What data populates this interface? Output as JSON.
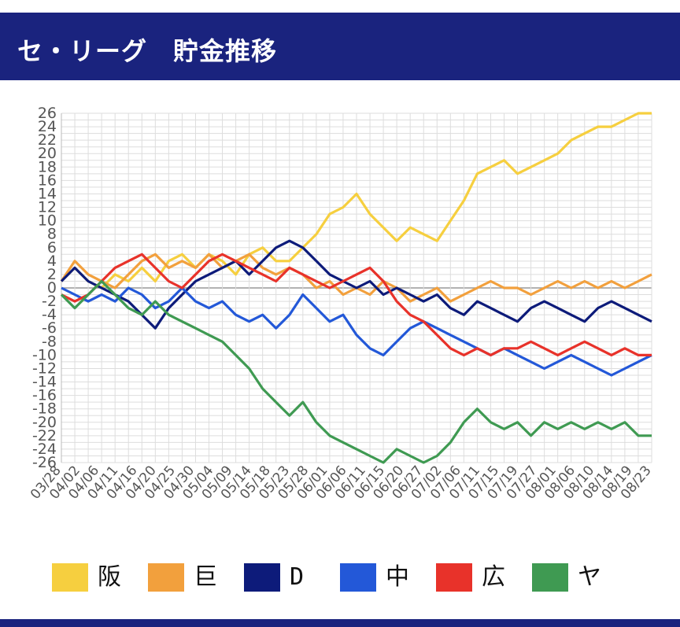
{
  "header": {
    "title": "セ・リーグ　貯金推移"
  },
  "colors": {
    "header_bg": "#1a237e",
    "grid": "#dddddd",
    "zero_line": "#999999",
    "axis_text": "#555555"
  },
  "chart_data": {
    "type": "line",
    "title": "",
    "xlabel": "",
    "ylabel": "",
    "ylim": [
      -26,
      26
    ],
    "ytick_step": 2,
    "grid": true,
    "legend_position": "bottom",
    "x_ticks": [
      "03/28",
      "04/02",
      "04/06",
      "04/11",
      "04/16",
      "04/20",
      "04/25",
      "04/30",
      "05/04",
      "05/09",
      "05/14",
      "05/18",
      "05/23",
      "05/28",
      "06/01",
      "06/06",
      "06/11",
      "06/15",
      "06/20",
      "06/27",
      "07/02",
      "07/06",
      "07/11",
      "07/15",
      "07/19",
      "07/27",
      "08/01",
      "08/06",
      "08/10",
      "08/14",
      "08/19",
      "08/23"
    ],
    "series": [
      {
        "name": "阪",
        "color": "#f6cf3f",
        "points": [
          [
            0,
            1
          ],
          [
            1,
            3
          ],
          [
            2,
            1
          ],
          [
            3,
            0
          ],
          [
            4,
            2
          ],
          [
            5,
            1
          ],
          [
            6,
            3
          ],
          [
            7,
            1
          ],
          [
            8,
            4
          ],
          [
            9,
            5
          ],
          [
            10,
            3
          ],
          [
            11,
            5
          ],
          [
            12,
            4
          ],
          [
            13,
            2
          ],
          [
            14,
            5
          ],
          [
            15,
            6
          ],
          [
            16,
            4
          ],
          [
            17,
            4
          ],
          [
            18,
            6
          ],
          [
            19,
            8
          ],
          [
            20,
            11
          ],
          [
            21,
            12
          ],
          [
            22,
            14
          ],
          [
            23,
            11
          ],
          [
            24,
            9
          ],
          [
            25,
            7
          ],
          [
            26,
            9
          ],
          [
            27,
            8
          ],
          [
            28,
            7
          ],
          [
            29,
            10
          ],
          [
            30,
            13
          ],
          [
            31,
            17
          ],
          [
            32,
            18
          ],
          [
            33,
            19
          ],
          [
            34,
            17
          ],
          [
            35,
            18
          ],
          [
            36,
            19
          ],
          [
            37,
            20
          ],
          [
            38,
            22
          ],
          [
            39,
            23
          ],
          [
            40,
            24
          ],
          [
            41,
            24
          ],
          [
            42,
            25
          ],
          [
            43,
            26
          ],
          [
            44,
            26
          ]
        ]
      },
      {
        "name": "巨",
        "color": "#f2a03d",
        "points": [
          [
            0,
            1
          ],
          [
            1,
            4
          ],
          [
            2,
            2
          ],
          [
            3,
            1
          ],
          [
            4,
            0
          ],
          [
            5,
            2
          ],
          [
            6,
            4
          ],
          [
            7,
            5
          ],
          [
            8,
            3
          ],
          [
            9,
            4
          ],
          [
            10,
            3
          ],
          [
            11,
            5
          ],
          [
            12,
            3
          ],
          [
            13,
            4
          ],
          [
            14,
            5
          ],
          [
            15,
            3
          ],
          [
            16,
            2
          ],
          [
            17,
            3
          ],
          [
            18,
            2
          ],
          [
            19,
            0
          ],
          [
            20,
            1
          ],
          [
            21,
            -1
          ],
          [
            22,
            0
          ],
          [
            23,
            -1
          ],
          [
            24,
            1
          ],
          [
            25,
            0
          ],
          [
            26,
            -2
          ],
          [
            27,
            -1
          ],
          [
            28,
            0
          ],
          [
            29,
            -2
          ],
          [
            30,
            -1
          ],
          [
            31,
            0
          ],
          [
            32,
            1
          ],
          [
            33,
            0
          ],
          [
            34,
            0
          ],
          [
            35,
            -1
          ],
          [
            36,
            0
          ],
          [
            37,
            1
          ],
          [
            38,
            0
          ],
          [
            39,
            1
          ],
          [
            40,
            0
          ],
          [
            41,
            1
          ],
          [
            42,
            0
          ],
          [
            43,
            1
          ],
          [
            44,
            2
          ]
        ]
      },
      {
        "name": "D",
        "color": "#0d1b7a",
        "points": [
          [
            0,
            1
          ],
          [
            1,
            3
          ],
          [
            2,
            1
          ],
          [
            3,
            0
          ],
          [
            4,
            -1
          ],
          [
            5,
            -2
          ],
          [
            6,
            -4
          ],
          [
            7,
            -6
          ],
          [
            8,
            -3
          ],
          [
            9,
            -1
          ],
          [
            10,
            1
          ],
          [
            11,
            2
          ],
          [
            12,
            3
          ],
          [
            13,
            4
          ],
          [
            14,
            2
          ],
          [
            15,
            4
          ],
          [
            16,
            6
          ],
          [
            17,
            7
          ],
          [
            18,
            6
          ],
          [
            19,
            4
          ],
          [
            20,
            2
          ],
          [
            21,
            1
          ],
          [
            22,
            0
          ],
          [
            23,
            1
          ],
          [
            24,
            -1
          ],
          [
            25,
            0
          ],
          [
            26,
            -1
          ],
          [
            27,
            -2
          ],
          [
            28,
            -1
          ],
          [
            29,
            -3
          ],
          [
            30,
            -4
          ],
          [
            31,
            -2
          ],
          [
            32,
            -3
          ],
          [
            33,
            -4
          ],
          [
            34,
            -5
          ],
          [
            35,
            -3
          ],
          [
            36,
            -2
          ],
          [
            37,
            -3
          ],
          [
            38,
            -4
          ],
          [
            39,
            -5
          ],
          [
            40,
            -3
          ],
          [
            41,
            -2
          ],
          [
            42,
            -3
          ],
          [
            43,
            -4
          ],
          [
            44,
            -5
          ]
        ]
      },
      {
        "name": "中",
        "color": "#2358d8",
        "points": [
          [
            0,
            0
          ],
          [
            1,
            -1
          ],
          [
            2,
            -2
          ],
          [
            3,
            -1
          ],
          [
            4,
            -2
          ],
          [
            5,
            0
          ],
          [
            6,
            -1
          ],
          [
            7,
            -3
          ],
          [
            8,
            -2
          ],
          [
            9,
            0
          ],
          [
            10,
            -2
          ],
          [
            11,
            -3
          ],
          [
            12,
            -2
          ],
          [
            13,
            -4
          ],
          [
            14,
            -5
          ],
          [
            15,
            -4
          ],
          [
            16,
            -6
          ],
          [
            17,
            -4
          ],
          [
            18,
            -1
          ],
          [
            19,
            -3
          ],
          [
            20,
            -5
          ],
          [
            21,
            -4
          ],
          [
            22,
            -7
          ],
          [
            23,
            -9
          ],
          [
            24,
            -10
          ],
          [
            25,
            -8
          ],
          [
            26,
            -6
          ],
          [
            27,
            -5
          ],
          [
            28,
            -6
          ],
          [
            29,
            -7
          ],
          [
            30,
            -8
          ],
          [
            31,
            -9
          ],
          [
            32,
            -10
          ],
          [
            33,
            -9
          ],
          [
            34,
            -10
          ],
          [
            35,
            -11
          ],
          [
            36,
            -12
          ],
          [
            37,
            -11
          ],
          [
            38,
            -10
          ],
          [
            39,
            -11
          ],
          [
            40,
            -12
          ],
          [
            41,
            -13
          ],
          [
            42,
            -12
          ],
          [
            43,
            -11
          ],
          [
            44,
            -10
          ]
        ]
      },
      {
        "name": "広",
        "color": "#e8322a",
        "points": [
          [
            0,
            -1
          ],
          [
            1,
            -2
          ],
          [
            2,
            -1
          ],
          [
            3,
            1
          ],
          [
            4,
            3
          ],
          [
            5,
            4
          ],
          [
            6,
            5
          ],
          [
            7,
            3
          ],
          [
            8,
            1
          ],
          [
            9,
            0
          ],
          [
            10,
            2
          ],
          [
            11,
            4
          ],
          [
            12,
            5
          ],
          [
            13,
            4
          ],
          [
            14,
            3
          ],
          [
            15,
            2
          ],
          [
            16,
            1
          ],
          [
            17,
            3
          ],
          [
            18,
            2
          ],
          [
            19,
            1
          ],
          [
            20,
            0
          ],
          [
            21,
            1
          ],
          [
            22,
            2
          ],
          [
            23,
            3
          ],
          [
            24,
            1
          ],
          [
            25,
            -2
          ],
          [
            26,
            -4
          ],
          [
            27,
            -5
          ],
          [
            28,
            -7
          ],
          [
            29,
            -9
          ],
          [
            30,
            -10
          ],
          [
            31,
            -9
          ],
          [
            32,
            -10
          ],
          [
            33,
            -9
          ],
          [
            34,
            -9
          ],
          [
            35,
            -8
          ],
          [
            36,
            -9
          ],
          [
            37,
            -10
          ],
          [
            38,
            -9
          ],
          [
            39,
            -8
          ],
          [
            40,
            -9
          ],
          [
            41,
            -10
          ],
          [
            42,
            -9
          ],
          [
            43,
            -10
          ],
          [
            44,
            -10
          ]
        ]
      },
      {
        "name": "ヤ",
        "color": "#3f9a52",
        "points": [
          [
            0,
            -1
          ],
          [
            1,
            -3
          ],
          [
            2,
            -1
          ],
          [
            3,
            1
          ],
          [
            4,
            -1
          ],
          [
            5,
            -3
          ],
          [
            6,
            -4
          ],
          [
            7,
            -2
          ],
          [
            8,
            -4
          ],
          [
            9,
            -5
          ],
          [
            10,
            -6
          ],
          [
            11,
            -7
          ],
          [
            12,
            -8
          ],
          [
            13,
            -10
          ],
          [
            14,
            -12
          ],
          [
            15,
            -15
          ],
          [
            16,
            -17
          ],
          [
            17,
            -19
          ],
          [
            18,
            -17
          ],
          [
            19,
            -20
          ],
          [
            20,
            -22
          ],
          [
            21,
            -23
          ],
          [
            22,
            -24
          ],
          [
            23,
            -25
          ],
          [
            24,
            -26
          ],
          [
            25,
            -24
          ],
          [
            26,
            -25
          ],
          [
            27,
            -26
          ],
          [
            28,
            -25
          ],
          [
            29,
            -23
          ],
          [
            30,
            -20
          ],
          [
            31,
            -18
          ],
          [
            32,
            -20
          ],
          [
            33,
            -21
          ],
          [
            34,
            -20
          ],
          [
            35,
            -22
          ],
          [
            36,
            -20
          ],
          [
            37,
            -21
          ],
          [
            38,
            -20
          ],
          [
            39,
            -21
          ],
          [
            40,
            -20
          ],
          [
            41,
            -21
          ],
          [
            42,
            -20
          ],
          [
            43,
            -22
          ],
          [
            44,
            -22
          ]
        ]
      }
    ]
  }
}
